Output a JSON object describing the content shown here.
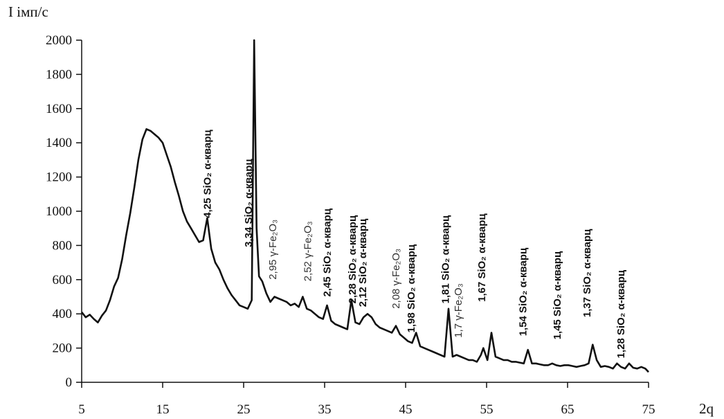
{
  "chart_data": {
    "type": "line",
    "ylabel": "I імп/с",
    "xlabel": "2q",
    "xlim": [
      5,
      75
    ],
    "ylim": [
      0,
      2000
    ],
    "x_ticks": [
      5,
      15,
      25,
      35,
      45,
      55,
      65,
      75
    ],
    "y_ticks": [
      0,
      200,
      400,
      600,
      800,
      1000,
      1200,
      1400,
      1600,
      1800,
      2000
    ],
    "grid": false,
    "legend": "none",
    "line_color": "#111111",
    "series": [
      {
        "x": [
          5,
          5.5,
          6,
          6.5,
          7,
          7.5,
          8,
          8.5,
          9,
          9.5,
          10,
          10.5,
          11,
          11.5,
          12,
          12.5,
          13,
          13.5,
          14,
          14.5,
          15,
          15.5,
          16,
          16.5,
          17,
          17.5,
          18,
          18.5,
          19,
          19.5,
          20,
          20.5,
          21,
          21.5,
          22,
          22.5,
          23,
          23.5,
          24,
          24.5,
          25,
          25.5,
          26,
          26.3,
          26.6,
          26.9,
          27.3,
          27.8,
          28.3,
          28.8,
          29.3,
          29.8,
          30.3,
          30.8,
          31.3,
          31.8,
          32.3,
          32.8,
          33.3,
          33.8,
          34.3,
          34.8,
          35.3,
          35.8,
          36.3,
          36.8,
          37.3,
          37.8,
          38.3,
          38.8,
          39.3,
          39.8,
          40.3,
          40.8,
          41.3,
          41.8,
          42.3,
          42.8,
          43.3,
          43.8,
          44.3,
          44.8,
          45.3,
          45.8,
          46.3,
          46.8,
          47.3,
          47.8,
          48.3,
          48.8,
          49.3,
          49.8,
          50.3,
          50.8,
          51.3,
          51.8,
          52.3,
          52.8,
          53.3,
          53.8,
          54.3,
          54.6,
          55.1,
          55.6,
          56.1,
          56.6,
          57.1,
          57.6,
          58.1,
          58.6,
          59.1,
          59.6,
          60.1,
          60.6,
          61.1,
          61.6,
          62.1,
          62.6,
          63.1,
          63.6,
          64.1,
          64.6,
          65.1,
          65.6,
          66.1,
          66.6,
          67.1,
          67.6,
          68.1,
          68.6,
          69.1,
          69.6,
          70.1,
          70.6,
          71.1,
          71.6,
          72.1,
          72.6,
          73.1,
          73.6,
          74.1,
          74.6,
          75
        ],
        "y": [
          410,
          380,
          395,
          370,
          350,
          390,
          420,
          480,
          560,
          610,
          720,
          860,
          990,
          1140,
          1300,
          1420,
          1480,
          1470,
          1450,
          1430,
          1400,
          1330,
          1260,
          1170,
          1090,
          1000,
          940,
          900,
          860,
          820,
          830,
          960,
          780,
          700,
          660,
          600,
          550,
          510,
          480,
          450,
          440,
          430,
          480,
          2000,
          900,
          620,
          590,
          520,
          470,
          500,
          490,
          480,
          470,
          450,
          460,
          440,
          500,
          430,
          420,
          400,
          380,
          370,
          450,
          360,
          340,
          330,
          320,
          310,
          480,
          350,
          340,
          380,
          400,
          380,
          340,
          320,
          310,
          300,
          290,
          330,
          280,
          260,
          240,
          230,
          290,
          210,
          200,
          190,
          180,
          170,
          160,
          150,
          430,
          150,
          160,
          150,
          140,
          130,
          130,
          120,
          160,
          200,
          130,
          290,
          150,
          140,
          130,
          130,
          120,
          120,
          115,
          110,
          190,
          110,
          110,
          105,
          100,
          100,
          110,
          100,
          95,
          100,
          100,
          95,
          90,
          95,
          100,
          110,
          220,
          130,
          90,
          95,
          90,
          80,
          110,
          90,
          80,
          110,
          85,
          80,
          90,
          80,
          60
        ]
      }
    ],
    "annotations": [
      {
        "text": "4,25 SiO₂ α-кварц",
        "x": 20.5,
        "y": 960,
        "bold": true
      },
      {
        "text": "3,34 SiO₂ α-кварц",
        "x": 25.6,
        "y": 790,
        "bold": true
      },
      {
        "text": "2,95 γ-Fe₂O₃",
        "x": 28.6,
        "y": 600,
        "bold": false
      },
      {
        "text": "2,52 γ-Fe₂O₃",
        "x": 32.9,
        "y": 590,
        "bold": false
      },
      {
        "text": "2,45 SiO₂ α-кварц",
        "x": 35.3,
        "y": 500,
        "bold": true
      },
      {
        "text": "2,28 SiO₂ α-кварц",
        "x": 38.4,
        "y": 460,
        "bold": true
      },
      {
        "text": "2,12 SiO₂ α-кварц",
        "x": 39.7,
        "y": 440,
        "bold": true
      },
      {
        "text": "2,08 γ-Fe₂O₃",
        "x": 43.8,
        "y": 430,
        "bold": false
      },
      {
        "text": "1,98 SiO₂ α-кварц",
        "x": 45.7,
        "y": 290,
        "bold": true
      },
      {
        "text": "1,81 SiO₂ α-кварц",
        "x": 49.9,
        "y": 460,
        "bold": true
      },
      {
        "text": "1,7 γ-Fe₂O₃",
        "x": 51.5,
        "y": 260,
        "bold": false
      },
      {
        "text": "1,67 SiO₂ α-кварц",
        "x": 54.4,
        "y": 470,
        "bold": true
      },
      {
        "text": "1,54 SiO₂ α-кварц",
        "x": 59.5,
        "y": 270,
        "bold": true
      },
      {
        "text": "1,45 SiO₂ α-кварц",
        "x": 63.7,
        "y": 250,
        "bold": true
      },
      {
        "text": "1,37 SiO₂ α-кварц",
        "x": 67.4,
        "y": 380,
        "bold": true
      },
      {
        "text": "1,28 SiO₂ α-кварц",
        "x": 71.6,
        "y": 140,
        "bold": true
      }
    ]
  }
}
